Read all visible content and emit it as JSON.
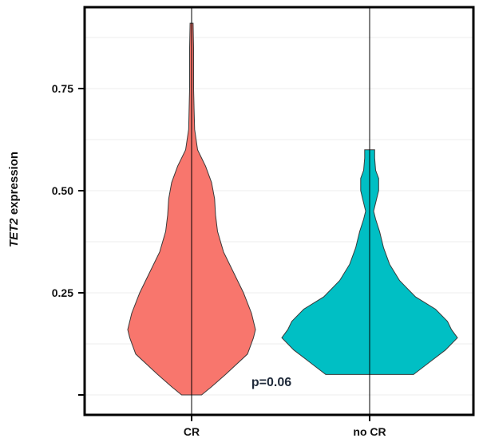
{
  "chart_data": {
    "type": "violin",
    "ylabel": {
      "italic": "TET2",
      "rest": " expression"
    },
    "yticks": [
      {
        "value": 0.0,
        "label": ""
      },
      {
        "value": 0.25,
        "label": "0.25"
      },
      {
        "value": 0.5,
        "label": "0.50"
      },
      {
        "value": 0.75,
        "label": "0.75"
      }
    ],
    "ylim": [
      -0.05,
      0.95
    ],
    "grid": true,
    "annotation": {
      "text": "p=0.06",
      "x": 1.5,
      "y": 0.04
    },
    "groups": [
      {
        "label": "CR",
        "color": "#F8766D",
        "min": 0.0,
        "max": 0.91,
        "profile": [
          [
            0.0,
            0.1
          ],
          [
            0.02,
            0.2
          ],
          [
            0.05,
            0.34
          ],
          [
            0.1,
            0.56
          ],
          [
            0.14,
            0.62
          ],
          [
            0.16,
            0.64
          ],
          [
            0.2,
            0.6
          ],
          [
            0.25,
            0.52
          ],
          [
            0.3,
            0.42
          ],
          [
            0.35,
            0.32
          ],
          [
            0.4,
            0.26
          ],
          [
            0.44,
            0.24
          ],
          [
            0.48,
            0.23
          ],
          [
            0.52,
            0.2
          ],
          [
            0.56,
            0.14
          ],
          [
            0.6,
            0.06
          ],
          [
            0.65,
            0.03
          ],
          [
            0.7,
            0.025
          ],
          [
            0.75,
            0.02
          ],
          [
            0.8,
            0.02
          ],
          [
            0.85,
            0.02
          ],
          [
            0.91,
            0.015
          ]
        ]
      },
      {
        "label": "no CR",
        "color": "#00BFC4",
        "min": 0.05,
        "max": 0.6,
        "profile": [
          [
            0.05,
            0.44
          ],
          [
            0.08,
            0.6
          ],
          [
            0.11,
            0.76
          ],
          [
            0.14,
            0.88
          ],
          [
            0.16,
            0.82
          ],
          [
            0.18,
            0.78
          ],
          [
            0.21,
            0.66
          ],
          [
            0.24,
            0.46
          ],
          [
            0.28,
            0.3
          ],
          [
            0.32,
            0.2
          ],
          [
            0.36,
            0.14
          ],
          [
            0.4,
            0.1
          ],
          [
            0.43,
            0.06
          ],
          [
            0.45,
            0.04
          ],
          [
            0.47,
            0.06
          ],
          [
            0.5,
            0.09
          ],
          [
            0.53,
            0.09
          ],
          [
            0.55,
            0.06
          ],
          [
            0.58,
            0.05
          ],
          [
            0.6,
            0.05
          ]
        ]
      }
    ]
  }
}
